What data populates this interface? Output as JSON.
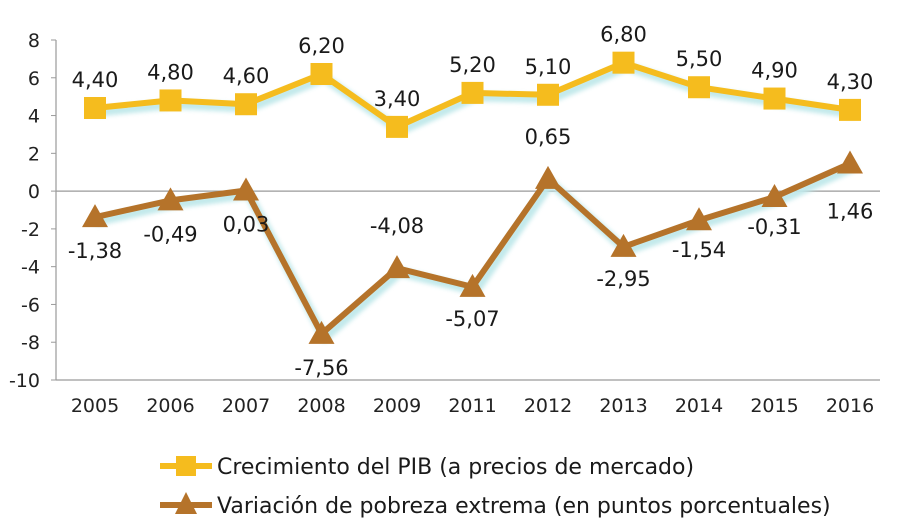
{
  "chart_data": {
    "type": "line",
    "categories": [
      "2005",
      "2006",
      "2007",
      "2008",
      "2009",
      "2011",
      "2012",
      "2013",
      "2014",
      "2015",
      "2016"
    ],
    "ylim": [
      -10,
      8
    ],
    "yticks": [
      8,
      6,
      4,
      2,
      0,
      -2,
      -4,
      -6,
      -8,
      -10
    ],
    "grid": false,
    "legend_position": "bottom",
    "series": [
      {
        "name": "Crecimiento del PIB (a precios de mercado)",
        "values": [
          4.4,
          4.8,
          4.6,
          6.2,
          3.4,
          5.2,
          5.1,
          6.8,
          5.5,
          4.9,
          4.3
        ],
        "labels": [
          "4,40",
          "4,80",
          "4,60",
          "6,20",
          "3,40",
          "5,20",
          "5,10",
          "6,80",
          "5,50",
          "4,90",
          "4,30"
        ],
        "color": "#F5BC1E",
        "marker": "square"
      },
      {
        "name": "Variación de pobreza extrema (en puntos porcentuales)",
        "values": [
          -1.38,
          -0.49,
          0.03,
          -7.56,
          -4.08,
          -5.07,
          0.65,
          -2.95,
          -1.54,
          -0.31,
          1.46
        ],
        "labels": [
          "-1,38",
          "-0,49",
          "0,03",
          "-7,56",
          "-4,08",
          "-5,07",
          "0,65",
          "-2,95",
          "-1,54",
          "-0,31",
          "1,46"
        ],
        "color": "#B5732A",
        "marker": "triangle"
      }
    ]
  }
}
